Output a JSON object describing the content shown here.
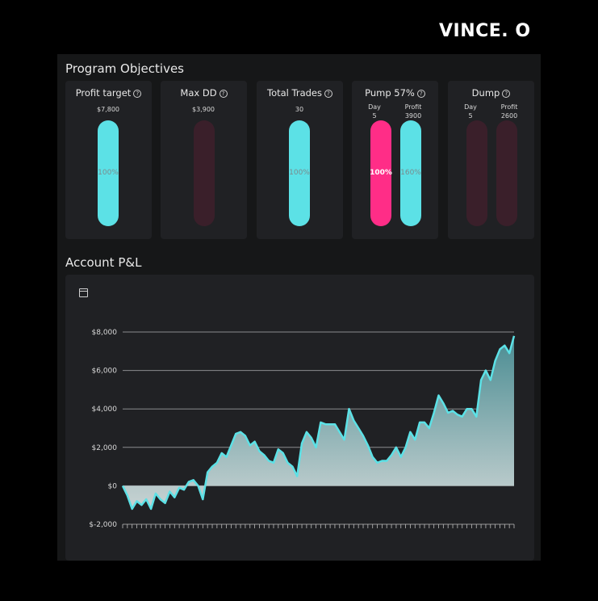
{
  "brand": "VINCE. O",
  "objectives_title": "Program Objectives",
  "cards": {
    "profit": {
      "title": "Profit target",
      "value": "$7,800",
      "progress_label": "100%",
      "progress": 1.0
    },
    "maxdd": {
      "title": "Max DD",
      "value": "$3,900"
    },
    "trades": {
      "title": "Total Trades",
      "value": "30",
      "progress_label": "100%",
      "progress": 1.0
    },
    "pump": {
      "title": "Pump 57%",
      "day_label": "Day",
      "day_value": "5",
      "profit_label": "Profit",
      "profit_value": "3900",
      "day_progress_label": "100%",
      "profit_progress_label": "160%"
    },
    "dump": {
      "title": "Dump",
      "day_label": "Day",
      "day_value": "5",
      "profit_label": "Profit",
      "profit_value": "2600"
    }
  },
  "colors": {
    "teal": "#5ce1e6",
    "pink": "#ff2d87",
    "track": "#3a1f2a",
    "card": "#202124"
  },
  "pnl_title": "Account P&L",
  "calendar_icon": "calendar-icon",
  "chart_data": {
    "type": "area",
    "title": "",
    "xlabel": "",
    "ylabel": "",
    "ylim": [
      -2000,
      8000
    ],
    "yticks": [
      -2000,
      0,
      2000,
      4000,
      6000,
      8000
    ],
    "ytick_labels": [
      "$-2,000",
      "$0",
      "$2,000",
      "$4,000",
      "$6,000",
      "$8,000"
    ],
    "grid": true,
    "values": [
      0,
      -500,
      -1200,
      -800,
      -1000,
      -700,
      -1200,
      -400,
      -700,
      -900,
      -300,
      -600,
      -100,
      -200,
      200,
      300,
      0,
      -700,
      700,
      1000,
      1200,
      1700,
      1500,
      2100,
      2700,
      2800,
      2600,
      2100,
      2300,
      1800,
      1600,
      1300,
      1200,
      1900,
      1700,
      1200,
      1000,
      500,
      2200,
      2800,
      2500,
      2000,
      3300,
      3200,
      3200,
      3200,
      2800,
      2400,
      4000,
      3400,
      3000,
      2600,
      2100,
      1500,
      1200,
      1300,
      1300,
      1600,
      2000,
      1500,
      2000,
      2800,
      2400,
      3300,
      3300,
      3000,
      3800,
      4700,
      4300,
      3800,
      3900,
      3700,
      3600,
      4000,
      4000,
      3600,
      5500,
      6000,
      5500,
      6500,
      7100,
      7300,
      6900,
      7800
    ]
  }
}
